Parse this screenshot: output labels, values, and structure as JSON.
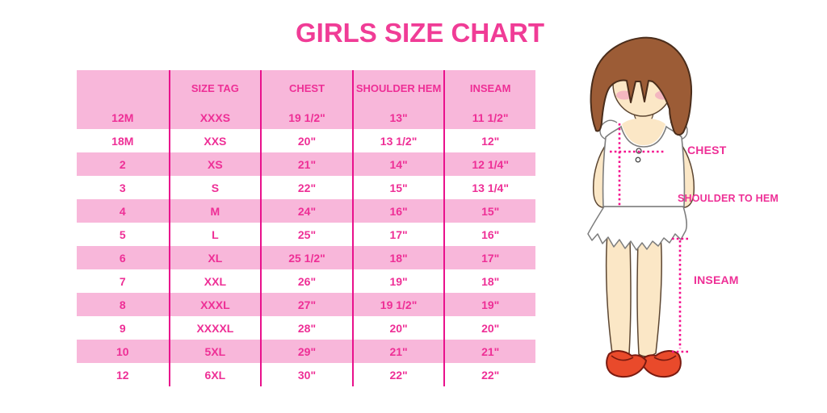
{
  "title": "GIRLS SIZE CHART",
  "table": {
    "columns": [
      "",
      "SIZE TAG",
      "CHEST",
      "SHOULDER HEM",
      "INSEAM"
    ],
    "rows": [
      [
        "12M",
        "XXXS",
        "19 1/2\"",
        "13\"",
        "11 1/2\""
      ],
      [
        "18M",
        "XXS",
        "20\"",
        "13 1/2\"",
        "12\""
      ],
      [
        "2",
        "XS",
        "21\"",
        "14\"",
        "12 1/4\""
      ],
      [
        "3",
        "S",
        "22\"",
        "15\"",
        "13 1/4\""
      ],
      [
        "4",
        "M",
        "24\"",
        "16\"",
        "15\""
      ],
      [
        "5",
        "L",
        "25\"",
        "17\"",
        "16\""
      ],
      [
        "6",
        "XL",
        "25 1/2\"",
        "18\"",
        "17\""
      ],
      [
        "7",
        "XXL",
        "26\"",
        "19\"",
        "18\""
      ],
      [
        "8",
        "XXXL",
        "27\"",
        "19 1/2\"",
        "19\""
      ],
      [
        "9",
        "XXXXL",
        "28\"",
        "20\"",
        "20\""
      ],
      [
        "10",
        "5XL",
        "29\"",
        "21\"",
        "21\""
      ],
      [
        "12",
        "6XL",
        "30\"",
        "22\"",
        "22\""
      ]
    ]
  },
  "diagram": {
    "chest_label": "CHEST",
    "shoulder_to_hem_label": "SHOULDER TO HEM",
    "inseam_label": "INSEAM"
  },
  "colors": {
    "title_pink": "#F03C96",
    "text_pink": "#EE2F96",
    "light_pink": "#F8B7DA",
    "divider_magenta": "#E9118C",
    "dotted_magenta": "#F5108E",
    "hair_brown": "#9C5C36",
    "skin": "#FBE7C6",
    "shoe_red": "#E94A2B"
  }
}
